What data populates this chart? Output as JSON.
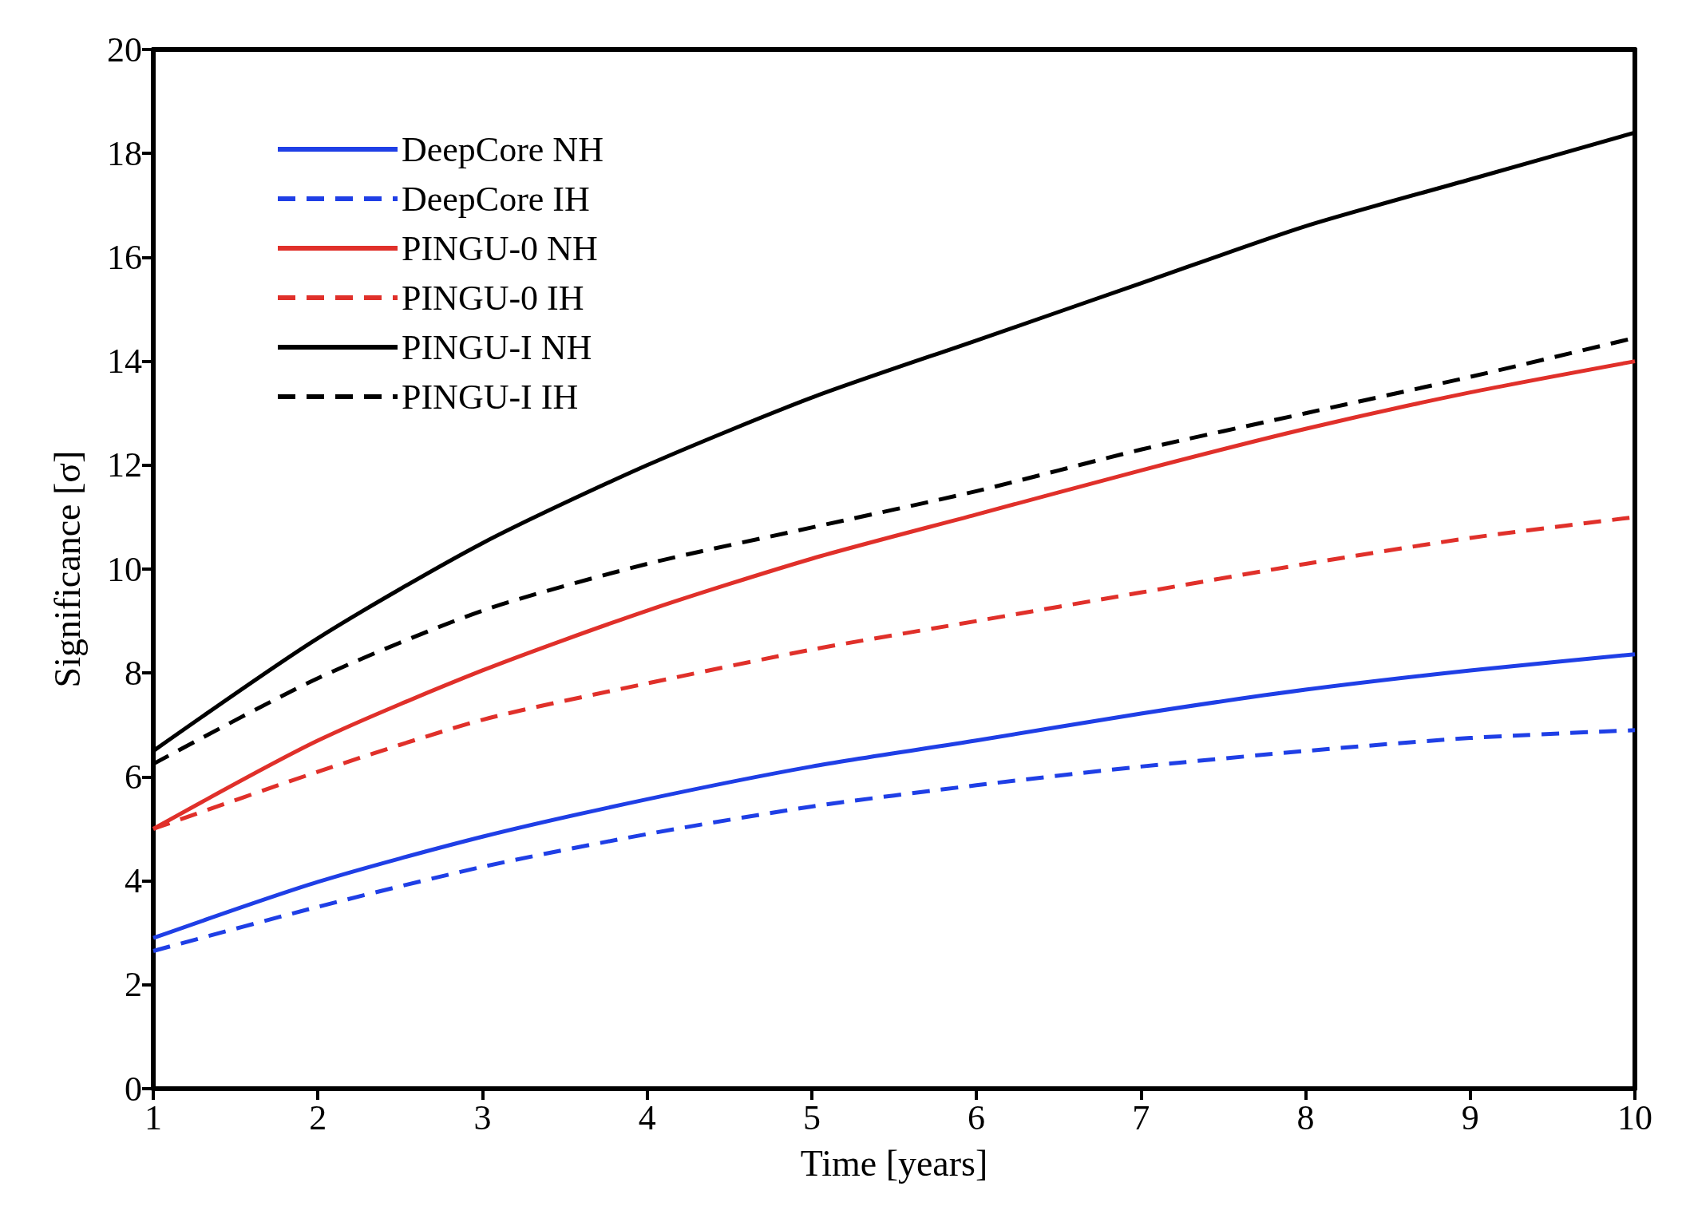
{
  "chart_data": {
    "type": "line",
    "xlabel": "Time [years]",
    "ylabel": "Significance [σ]",
    "x": [
      1,
      2,
      3,
      4,
      5,
      6,
      7,
      8,
      9,
      10
    ],
    "xlim": [
      1,
      10
    ],
    "xticks": [
      1,
      2,
      3,
      4,
      5,
      6,
      7,
      8,
      9,
      10
    ],
    "ylim": [
      0,
      20
    ],
    "yticks": [
      0,
      2,
      4,
      6,
      8,
      10,
      12,
      14,
      16,
      18,
      20
    ],
    "grid": false,
    "legend": "top left",
    "marker": "none",
    "series": [
      {
        "name": "DeepCore NH",
        "color": "#1f3fe6",
        "line_style": "solid",
        "values": [
          2.9,
          3.98,
          4.85,
          5.57,
          6.2,
          6.7,
          7.22,
          7.68,
          8.05,
          8.36
        ]
      },
      {
        "name": "DeepCore IH",
        "color": "#1f3fe6",
        "line_style": "dashed",
        "values": [
          2.65,
          3.5,
          4.27,
          4.9,
          5.43,
          5.84,
          6.2,
          6.5,
          6.75,
          6.9
        ]
      },
      {
        "name": "PINGU-0 NH",
        "color": "#e0302a",
        "line_style": "solid",
        "values": [
          5.0,
          6.7,
          8.05,
          9.2,
          10.2,
          11.05,
          11.9,
          12.7,
          13.4,
          14.0
        ]
      },
      {
        "name": "PINGU-0 IH",
        "color": "#e0302a",
        "line_style": "dashed",
        "values": [
          5.0,
          6.1,
          7.1,
          7.8,
          8.45,
          9.0,
          9.55,
          10.1,
          10.6,
          11.0
        ]
      },
      {
        "name": "PINGU-I NH",
        "color": "#000000",
        "line_style": "solid",
        "values": [
          6.5,
          8.67,
          10.5,
          12.0,
          13.3,
          14.4,
          15.5,
          16.6,
          17.5,
          18.4
        ]
      },
      {
        "name": "PINGU-I IH",
        "color": "#000000",
        "line_style": "dashed",
        "values": [
          6.25,
          7.9,
          9.2,
          10.1,
          10.8,
          11.5,
          12.3,
          13.0,
          13.7,
          14.45
        ]
      }
    ]
  }
}
